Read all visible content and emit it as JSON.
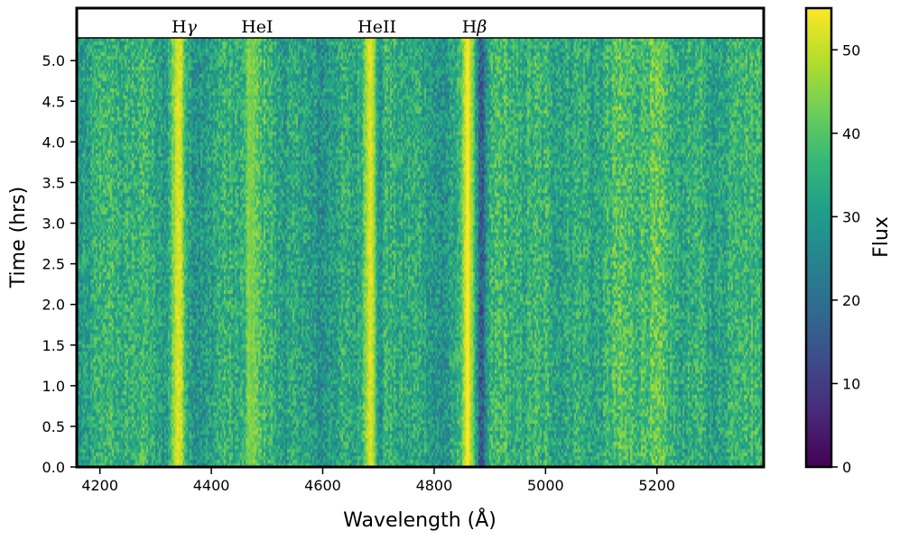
{
  "chart_data": {
    "type": "heatmap",
    "xlabel": "Wavelength (Å)",
    "ylabel": "Time (hrs)",
    "xlim": [
      4160,
      5390
    ],
    "ylim": [
      0.0,
      5.28
    ],
    "x_ticks": [
      "4200",
      "4400",
      "4600",
      "4800",
      "5000",
      "5200"
    ],
    "x_tick_values": [
      4200,
      4400,
      4600,
      4800,
      5000,
      5200
    ],
    "y_ticks": [
      "0.0",
      "0.5",
      "1.0",
      "1.5",
      "2.0",
      "2.5",
      "3.0",
      "3.5",
      "4.0",
      "4.5",
      "5.0"
    ],
    "y_tick_values": [
      0.0,
      0.5,
      1.0,
      1.5,
      2.0,
      2.5,
      3.0,
      3.5,
      4.0,
      4.5,
      5.0
    ],
    "colorbar": {
      "label": "Flux",
      "colormap": "viridis",
      "range": [
        0,
        55
      ],
      "ticks": [
        "0",
        "10",
        "20",
        "30",
        "40",
        "50"
      ],
      "tick_values": [
        0,
        10,
        20,
        30,
        40,
        50
      ]
    },
    "baseline_flux": 33,
    "emission_lines": [
      {
        "label": "Hγ",
        "base": "H",
        "symbol": "γ",
        "wavelength": 4340,
        "flux": 54
      },
      {
        "label": "HeI",
        "base": "HeI",
        "symbol": "",
        "wavelength": 4471,
        "flux": 42
      },
      {
        "label": "HeII",
        "base": "HeII",
        "symbol": "",
        "wavelength": 4686,
        "flux": 53
      },
      {
        "label": "Hβ",
        "base": "H",
        "symbol": "β",
        "wavelength": 4861,
        "flux": 55
      }
    ],
    "absorption_troughs": [
      {
        "wavelength": 4700,
        "flux": 18
      },
      {
        "wavelength": 4885,
        "flux": 15
      }
    ]
  },
  "colors": {
    "viridis": [
      "#440154",
      "#482878",
      "#3e4989",
      "#31688e",
      "#26828e",
      "#1f9e89",
      "#35b779",
      "#6ece58",
      "#b5de2b",
      "#fde725"
    ],
    "frame": "#000000"
  }
}
